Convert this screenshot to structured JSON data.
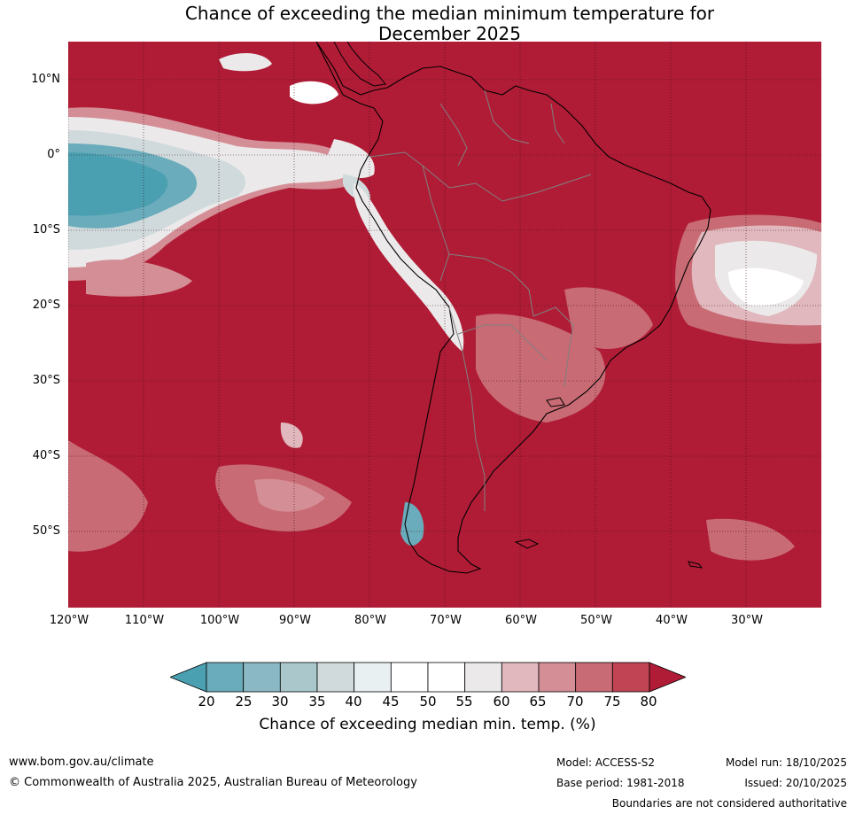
{
  "title_line1": "Chance of exceeding the median minimum temperature for",
  "title_line2": "December 2025",
  "lat_labels": [
    "10°N",
    "0°",
    "10°S",
    "20°S",
    "30°S",
    "40°S",
    "50°S"
  ],
  "lon_labels": [
    "120°W",
    "110°W",
    "100°W",
    "90°W",
    "80°W",
    "70°W",
    "60°W",
    "50°W",
    "40°W",
    "30°W"
  ],
  "colorbar": {
    "ticks": [
      "20",
      "25",
      "30",
      "35",
      "40",
      "45",
      "50",
      "55",
      "60",
      "65",
      "70",
      "75",
      "80"
    ],
    "colors": [
      "#4aa0b1",
      "#6aacbb",
      "#8ab8c4",
      "#aac8cc",
      "#d0dadc",
      "#e9f0f2",
      "#ffffff",
      "#ffffff",
      "#ebe9ea",
      "#e0b8bd",
      "#d48e96",
      "#c86b74",
      "#c04453",
      "#b01c36"
    ],
    "label": "Chance of exceeding median min. temp. (%)"
  },
  "colors": {
    "ocean_base": "#b01c36",
    "coast": "#000000",
    "border": "#808080"
  },
  "footer": {
    "url": "www.bom.gov.au/climate",
    "copyright": "© Commonwealth of Australia 2025, Australian Bureau of Meteorology",
    "model": "Model: ACCESS-S2",
    "base_period": "Base period: 1981-2018",
    "model_run": "Model run: 18/10/2025",
    "issued": "Issued: 20/10/2025",
    "disclaimer": "Boundaries are not considered authoritative"
  }
}
